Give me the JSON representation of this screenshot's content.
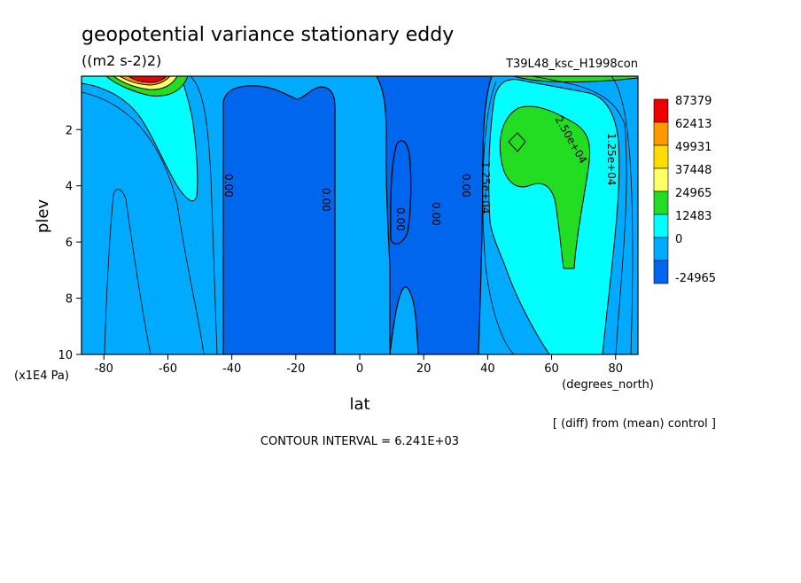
{
  "title": "geopotential variance stationary eddy",
  "units": "((m2 s-2)2)",
  "experiment": "T39L48_ksc_H1998con",
  "diff_note": "[ (diff) from (mean) control ]",
  "contour_interval": "CONTOUR INTERVAL = 6.241E+03",
  "chart_data": {
    "type": "heatmap",
    "xlabel": "lat",
    "xunits": "(degrees_north)",
    "ylabel": "plev",
    "yunits": "(x1E4 Pa)",
    "xlim": [
      -87,
      87
    ],
    "ylim": [
      10,
      0.1
    ],
    "x_ticks": [
      -80,
      -60,
      -40,
      -20,
      0,
      20,
      40,
      60,
      80
    ],
    "x_tick_labels": [
      "-80",
      "-60",
      "-40",
      "-20",
      "0",
      "20",
      "40",
      "60",
      "80"
    ],
    "y_ticks": [
      2,
      4,
      6,
      8,
      10
    ],
    "y_tick_labels": [
      "2",
      "4",
      "6",
      "8",
      "10"
    ],
    "legend": {
      "placement": "right",
      "levels": [
        "87379",
        "62413",
        "49931",
        "37448",
        "24965",
        "12483",
        "0",
        "-24965"
      ],
      "colors": [
        "#ee0000",
        "#ff9900",
        "#ffdd00",
        "#ffff66",
        "#22dd22",
        "#00ffff",
        "#00aaff",
        "#0066ee"
      ]
    },
    "contour_labels": [
      "0.00",
      "0.00",
      "0.00",
      "0.00",
      "0.00",
      "1.25e+04",
      "2.50e+04",
      "1.25e+04"
    ],
    "background_color": "#00aaff",
    "negative_color": "#0066ee",
    "positive_color": "#00ffff",
    "high_color": "#22dd22"
  }
}
